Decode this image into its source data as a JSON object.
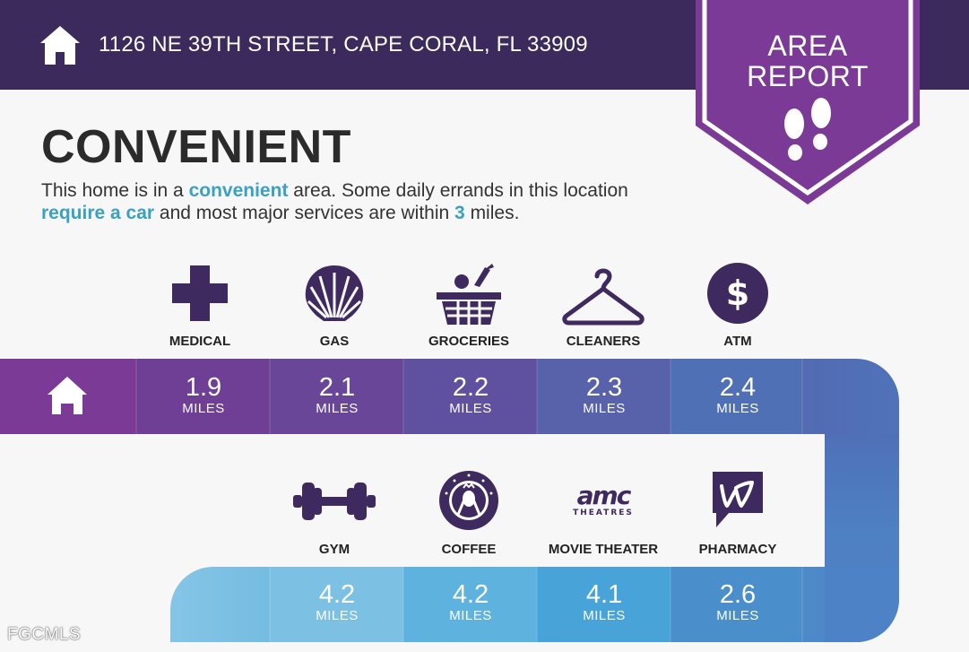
{
  "header": {
    "address": "1126 NE 39TH STREET, CAPE CORAL, FL 33909"
  },
  "badge": {
    "line1": "AREA",
    "line2": "REPORT"
  },
  "title": "CONVENIENT",
  "description": {
    "p1": "This home is in a ",
    "h1": "convenient",
    "p2": " area. Some daily errands in this location ",
    "h2": "require a car",
    "p3": " and most major services are within ",
    "h3": "3",
    "p4": " miles."
  },
  "row1": [
    {
      "label": "MEDICAL",
      "icon": "medical-cross-icon",
      "distance": "1.9",
      "unit": "MILES"
    },
    {
      "label": "GAS",
      "icon": "shell-icon",
      "distance": "2.1",
      "unit": "MILES"
    },
    {
      "label": "GROCERIES",
      "icon": "grocery-basket-icon",
      "distance": "2.2",
      "unit": "MILES"
    },
    {
      "label": "CLEANERS",
      "icon": "hanger-icon",
      "distance": "2.3",
      "unit": "MILES"
    },
    {
      "label": "ATM",
      "icon": "dollar-icon",
      "distance": "2.4",
      "unit": "MILES"
    }
  ],
  "row2": [
    {
      "label": "GYM",
      "icon": "dumbbell-icon",
      "distance": "4.2",
      "unit": "MILES"
    },
    {
      "label": "COFFEE",
      "icon": "starbucks-icon",
      "distance": "4.2",
      "unit": "MILES"
    },
    {
      "label": "MOVIE THEATER",
      "icon": "amc-icon",
      "distance": "4.1",
      "unit": "MILES",
      "logo_line1": "amc",
      "logo_line2": "THEATRES"
    },
    {
      "label": "PHARMACY",
      "icon": "walgreens-icon",
      "distance": "2.6",
      "unit": "MILES"
    }
  ],
  "watermark": "FGCMLS",
  "colors": {
    "header": "#3b2a5b",
    "badge": "#7b3a96",
    "accent_text": "#3aa1c2",
    "icon": "#3e2a5e"
  }
}
